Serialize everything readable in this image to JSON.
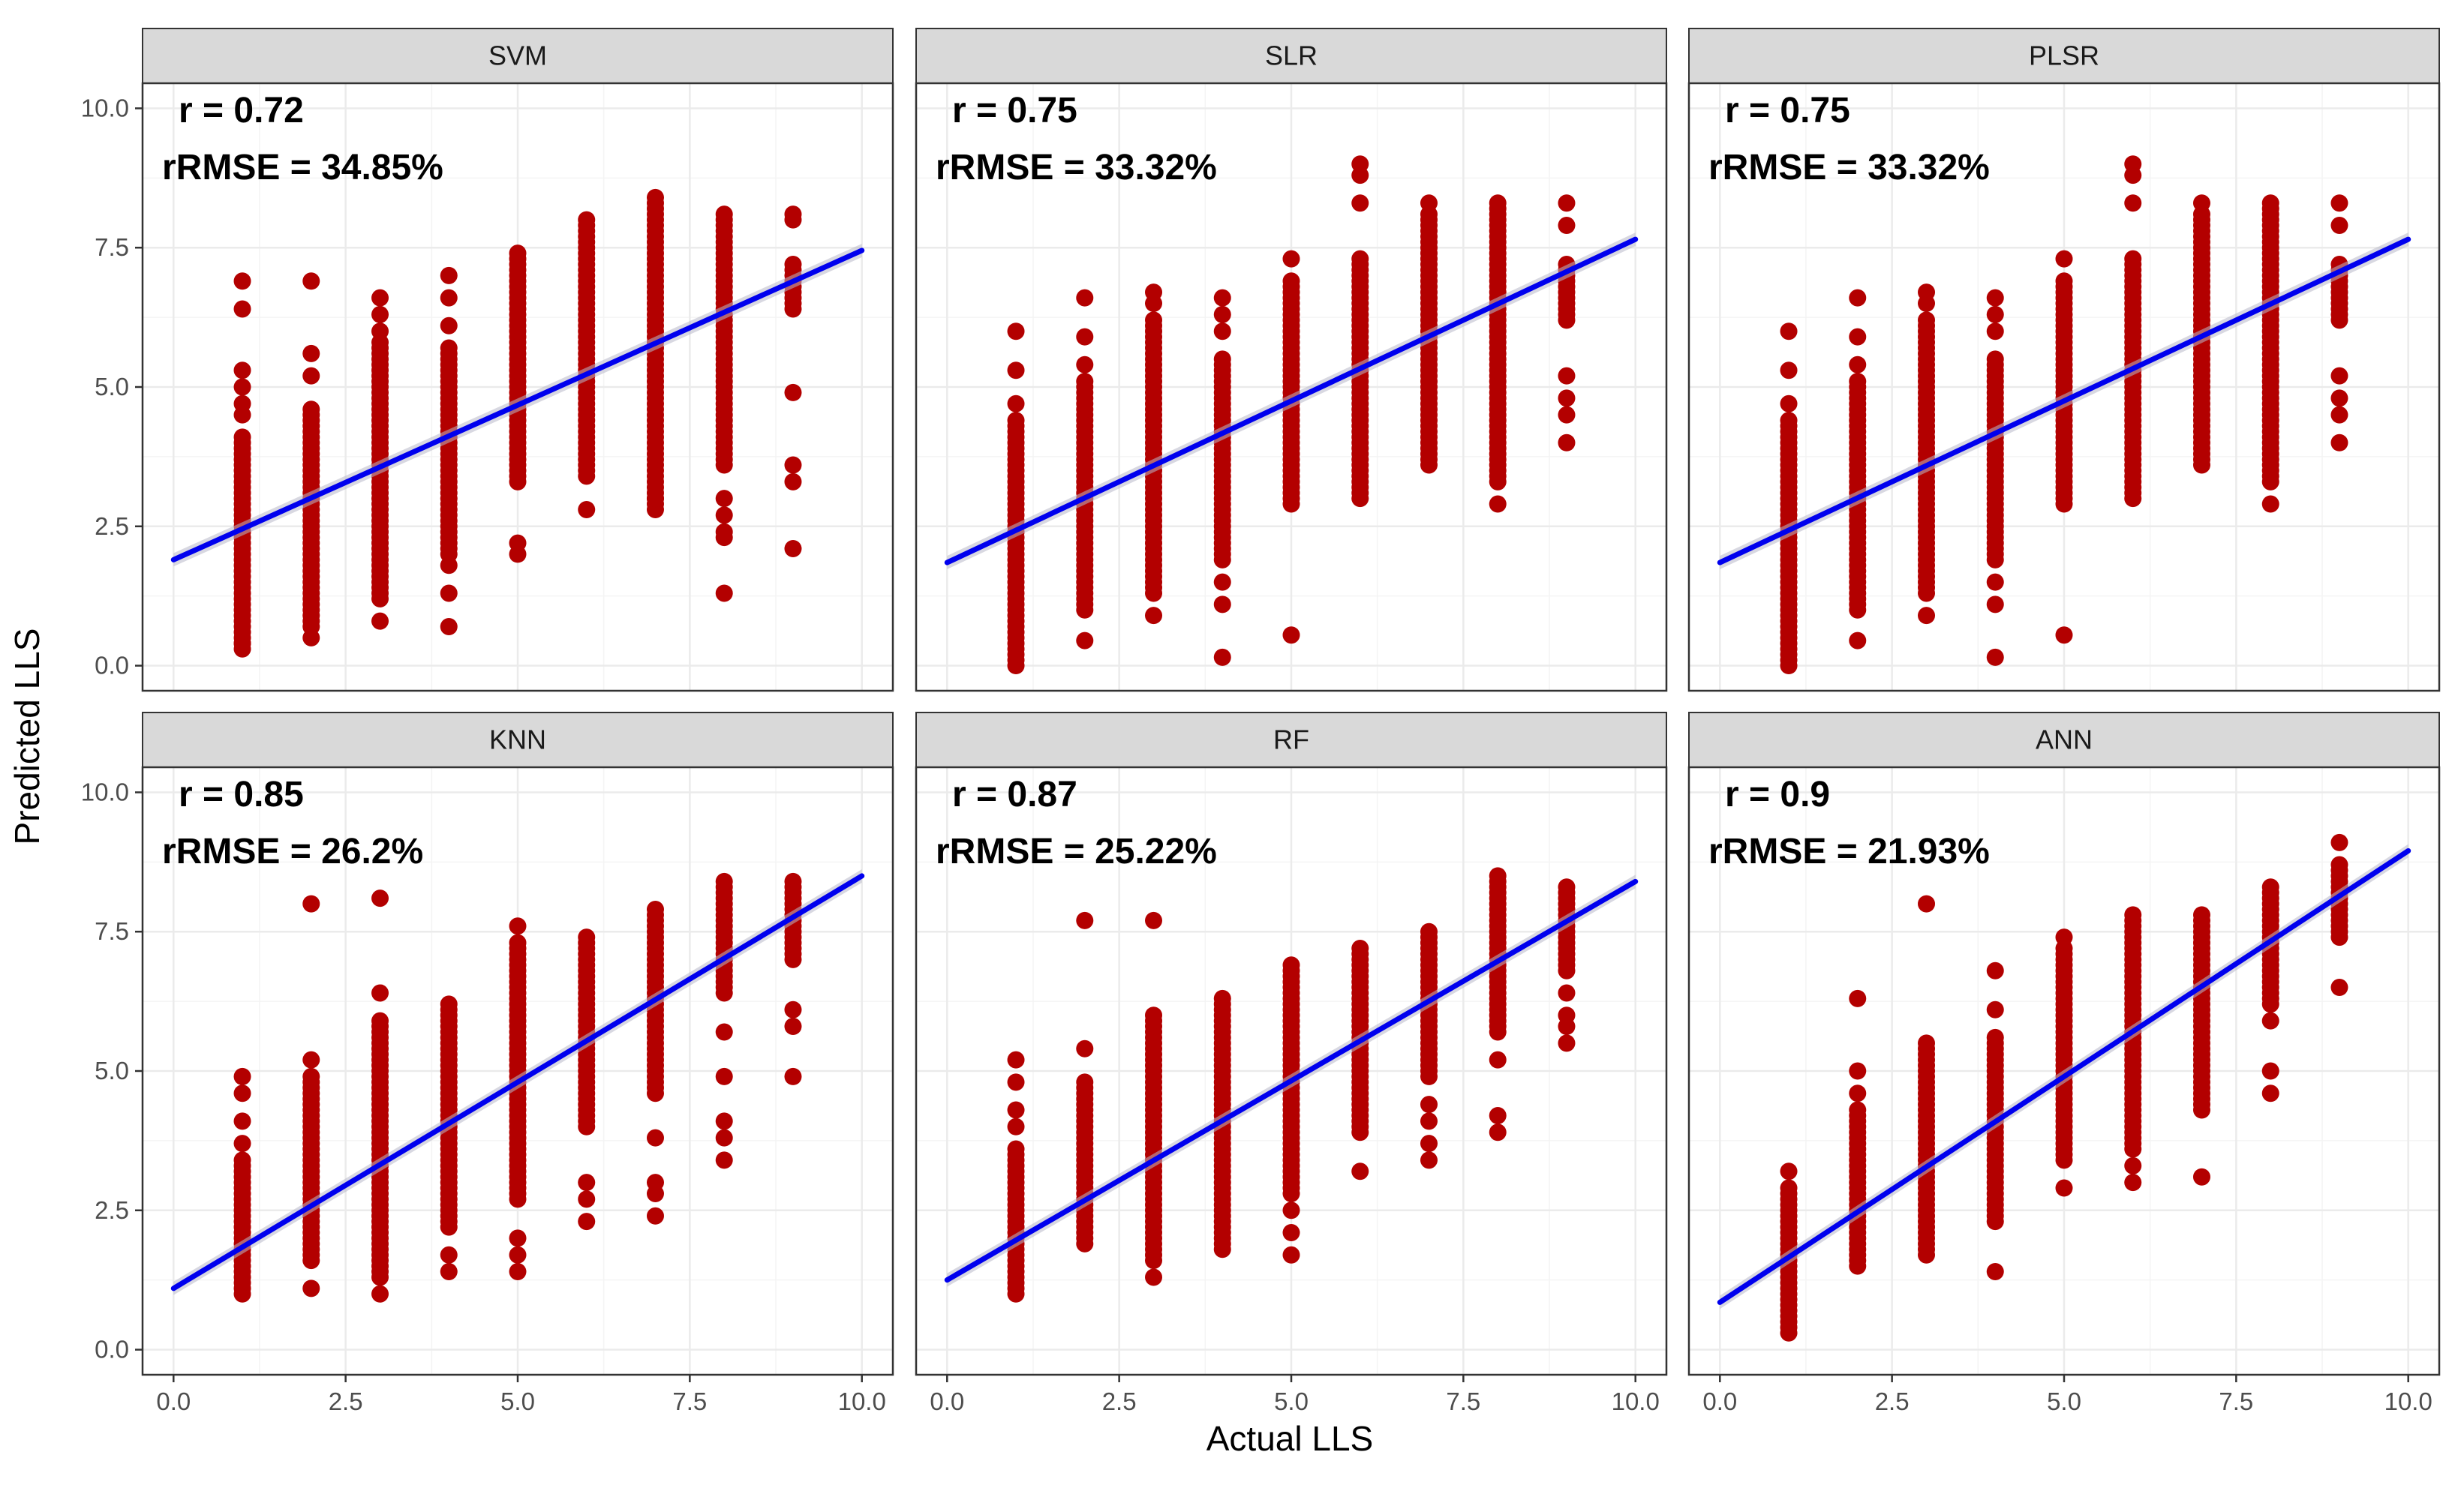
{
  "figure": {
    "xlabel": "Actual LLS",
    "ylabel": "Predicted LLS"
  },
  "colors": {
    "points": "#b30000",
    "fit_line": "#0000ee",
    "ci_band": "#b8b8c8",
    "strip": "#d9d9d9",
    "grid_major": "#ebebeb",
    "grid_minor": "#f4f4f4",
    "border": "#333333"
  },
  "chart_data": [
    {
      "type": "scatter",
      "title": "SVM",
      "annotation_r": "r = 0.72",
      "annotation_rmse": "rRMSE = 34.85%",
      "xlim": [
        0,
        10
      ],
      "ylim": [
        0,
        10
      ],
      "x_ticks": [
        "0.0",
        "2.5",
        "5.0",
        "7.5",
        "10.0"
      ],
      "y_ticks": [
        "0.0",
        "2.5",
        "5.0",
        "7.5",
        "10.0"
      ],
      "fit": {
        "intercept": 1.9,
        "slope": 0.555
      },
      "groups": [
        {
          "x": 1,
          "min": 0.3,
          "max": 4.1,
          "extra": [
            0.4,
            4.5,
            4.7,
            5.0,
            5.3,
            6.4,
            6.9
          ]
        },
        {
          "x": 2,
          "min": 0.7,
          "max": 4.6,
          "extra": [
            0.5,
            5.2,
            5.6,
            6.9
          ]
        },
        {
          "x": 3,
          "min": 1.2,
          "max": 5.8,
          "extra": [
            0.8,
            6.0,
            6.3,
            6.6
          ]
        },
        {
          "x": 4,
          "min": 2.0,
          "max": 5.7,
          "extra": [
            0.7,
            1.3,
            1.8,
            6.1,
            6.6,
            7.0
          ]
        },
        {
          "x": 5,
          "min": 3.3,
          "max": 7.4,
          "extra": [
            2.0,
            2.2
          ]
        },
        {
          "x": 6,
          "min": 3.4,
          "max": 8.0,
          "extra": [
            2.8
          ]
        },
        {
          "x": 7,
          "min": 2.8,
          "max": 8.4,
          "extra": [
            3.0
          ]
        },
        {
          "x": 8,
          "min": 3.6,
          "max": 8.1,
          "extra": [
            1.3,
            2.3,
            2.4,
            2.7,
            3.0
          ]
        },
        {
          "x": 9,
          "min": 6.4,
          "max": 7.2,
          "extra": [
            2.1,
            3.3,
            3.6,
            4.9,
            8.0,
            8.1
          ]
        }
      ]
    },
    {
      "type": "scatter",
      "title": "SLR",
      "annotation_r": "r = 0.75",
      "annotation_rmse": "rRMSE = 33.32%",
      "xlim": [
        0,
        10
      ],
      "ylim": [
        0,
        10
      ],
      "x_ticks": [
        "0.0",
        "2.5",
        "5.0",
        "7.5",
        "10.0"
      ],
      "y_ticks": [
        "0.0",
        "2.5",
        "5.0",
        "7.5",
        "10.0"
      ],
      "fit": {
        "intercept": 1.85,
        "slope": 0.58
      },
      "groups": [
        {
          "x": 1,
          "min": 0.0,
          "max": 4.4,
          "extra": [
            4.7,
            5.3,
            6.0
          ]
        },
        {
          "x": 2,
          "min": 1.0,
          "max": 5.1,
          "extra": [
            0.45,
            5.4,
            5.9,
            6.6
          ]
        },
        {
          "x": 3,
          "min": 1.3,
          "max": 6.2,
          "extra": [
            0.9,
            6.5,
            6.7
          ]
        },
        {
          "x": 4,
          "min": 1.9,
          "max": 5.5,
          "extra": [
            0.15,
            1.1,
            1.5,
            6.0,
            6.3,
            6.6
          ]
        },
        {
          "x": 5,
          "min": 2.9,
          "max": 6.9,
          "extra": [
            0.55,
            7.3
          ]
        },
        {
          "x": 6,
          "min": 3.0,
          "max": 7.3,
          "extra": [
            8.3,
            8.8,
            9.0
          ]
        },
        {
          "x": 7,
          "min": 3.6,
          "max": 8.1,
          "extra": [
            8.3
          ]
        },
        {
          "x": 8,
          "min": 3.3,
          "max": 8.3,
          "extra": [
            2.9
          ]
        },
        {
          "x": 9,
          "min": 6.2,
          "max": 7.2,
          "extra": [
            4.0,
            4.5,
            4.8,
            5.2,
            7.9,
            8.3
          ]
        }
      ]
    },
    {
      "type": "scatter",
      "title": "PLSR",
      "annotation_r": "r = 0.75",
      "annotation_rmse": "rRMSE = 33.32%",
      "xlim": [
        0,
        10
      ],
      "ylim": [
        0,
        10
      ],
      "x_ticks": [
        "0.0",
        "2.5",
        "5.0",
        "7.5",
        "10.0"
      ],
      "y_ticks": [
        "0.0",
        "2.5",
        "5.0",
        "7.5",
        "10.0"
      ],
      "fit": {
        "intercept": 1.85,
        "slope": 0.58
      },
      "groups": [
        {
          "x": 1,
          "min": 0.0,
          "max": 4.4,
          "extra": [
            4.7,
            5.3,
            6.0
          ]
        },
        {
          "x": 2,
          "min": 1.0,
          "max": 5.1,
          "extra": [
            0.45,
            5.4,
            5.9,
            6.6
          ]
        },
        {
          "x": 3,
          "min": 1.3,
          "max": 6.2,
          "extra": [
            0.9,
            6.5,
            6.7
          ]
        },
        {
          "x": 4,
          "min": 1.9,
          "max": 5.5,
          "extra": [
            0.15,
            1.1,
            1.5,
            6.0,
            6.3,
            6.6
          ]
        },
        {
          "x": 5,
          "min": 2.9,
          "max": 6.9,
          "extra": [
            0.55,
            7.3
          ]
        },
        {
          "x": 6,
          "min": 3.0,
          "max": 7.3,
          "extra": [
            8.3,
            8.8,
            9.0
          ]
        },
        {
          "x": 7,
          "min": 3.6,
          "max": 8.1,
          "extra": [
            8.3
          ]
        },
        {
          "x": 8,
          "min": 3.3,
          "max": 8.3,
          "extra": [
            2.9
          ]
        },
        {
          "x": 9,
          "min": 6.2,
          "max": 7.2,
          "extra": [
            4.0,
            4.5,
            4.8,
            5.2,
            7.9,
            8.3
          ]
        }
      ]
    },
    {
      "type": "scatter",
      "title": "KNN",
      "annotation_r": "r = 0.85",
      "annotation_rmse": "rRMSE = 26.2%",
      "xlim": [
        0,
        10
      ],
      "ylim": [
        0,
        10
      ],
      "x_ticks": [
        "0.0",
        "2.5",
        "5.0",
        "7.5",
        "10.0"
      ],
      "y_ticks": [
        "0.0",
        "2.5",
        "5.0",
        "7.5",
        "10.0"
      ],
      "fit": {
        "intercept": 1.1,
        "slope": 0.74
      },
      "groups": [
        {
          "x": 1,
          "min": 1.0,
          "max": 3.4,
          "extra": [
            3.7,
            4.1,
            4.6,
            4.9
          ]
        },
        {
          "x": 2,
          "min": 1.6,
          "max": 4.9,
          "extra": [
            1.1,
            5.2,
            8.0
          ]
        },
        {
          "x": 3,
          "min": 1.3,
          "max": 5.9,
          "extra": [
            1.0,
            6.4,
            8.1
          ]
        },
        {
          "x": 4,
          "min": 2.2,
          "max": 6.2,
          "extra": [
            1.4,
            1.7
          ]
        },
        {
          "x": 5,
          "min": 2.7,
          "max": 7.3,
          "extra": [
            1.4,
            1.7,
            2.0,
            7.6
          ]
        },
        {
          "x": 6,
          "min": 4.0,
          "max": 7.4,
          "extra": [
            2.3,
            2.7,
            3.0
          ]
        },
        {
          "x": 7,
          "min": 4.6,
          "max": 7.9,
          "extra": [
            2.4,
            2.8,
            3.0,
            3.8
          ]
        },
        {
          "x": 8,
          "min": 6.4,
          "max": 8.4,
          "extra": [
            3.4,
            3.8,
            4.1,
            4.9,
            5.7
          ]
        },
        {
          "x": 9,
          "min": 7.0,
          "max": 8.4,
          "extra": [
            4.9,
            5.8,
            6.1
          ]
        }
      ]
    },
    {
      "type": "scatter",
      "title": "RF",
      "annotation_r": "r = 0.87",
      "annotation_rmse": "rRMSE = 25.22%",
      "xlim": [
        0,
        10
      ],
      "ylim": [
        0,
        10
      ],
      "x_ticks": [
        "0.0",
        "2.5",
        "5.0",
        "7.5",
        "10.0"
      ],
      "y_ticks": [
        "0.0",
        "2.5",
        "5.0",
        "7.5",
        "10.0"
      ],
      "fit": {
        "intercept": 1.25,
        "slope": 0.715
      },
      "groups": [
        {
          "x": 1,
          "min": 1.0,
          "max": 3.6,
          "extra": [
            4.0,
            4.3,
            4.8,
            5.2
          ]
        },
        {
          "x": 2,
          "min": 1.9,
          "max": 4.8,
          "extra": [
            5.4,
            7.7
          ]
        },
        {
          "x": 3,
          "min": 1.6,
          "max": 6.0,
          "extra": [
            1.3,
            7.7
          ]
        },
        {
          "x": 4,
          "min": 1.8,
          "max": 6.3,
          "extra": []
        },
        {
          "x": 5,
          "min": 2.8,
          "max": 6.9,
          "extra": [
            1.7,
            2.1,
            2.5
          ]
        },
        {
          "x": 6,
          "min": 3.9,
          "max": 7.2,
          "extra": [
            3.2
          ]
        },
        {
          "x": 7,
          "min": 4.9,
          "max": 7.5,
          "extra": [
            3.4,
            3.7,
            4.1,
            4.4
          ]
        },
        {
          "x": 8,
          "min": 5.7,
          "max": 8.5,
          "extra": [
            3.9,
            4.2,
            5.2
          ]
        },
        {
          "x": 9,
          "min": 6.9,
          "max": 8.3,
          "extra": [
            5.5,
            5.8,
            6.0,
            6.4,
            6.8
          ]
        }
      ]
    },
    {
      "type": "scatter",
      "title": "ANN",
      "annotation_r": "r = 0.9",
      "annotation_rmse": "rRMSE = 21.93%",
      "xlim": [
        0,
        10
      ],
      "ylim": [
        0,
        10
      ],
      "x_ticks": [
        "0.0",
        "2.5",
        "5.0",
        "7.5",
        "10.0"
      ],
      "y_ticks": [
        "0.0",
        "2.5",
        "5.0",
        "7.5",
        "10.0"
      ],
      "fit": {
        "intercept": 0.85,
        "slope": 0.81
      },
      "groups": [
        {
          "x": 1,
          "min": 0.3,
          "max": 2.9,
          "extra": [
            3.2
          ]
        },
        {
          "x": 2,
          "min": 1.5,
          "max": 4.3,
          "extra": [
            4.6,
            5.0,
            6.3
          ]
        },
        {
          "x": 3,
          "min": 1.7,
          "max": 5.5,
          "extra": [
            8.0
          ]
        },
        {
          "x": 4,
          "min": 2.3,
          "max": 5.6,
          "extra": [
            1.4,
            6.1,
            6.8
          ]
        },
        {
          "x": 5,
          "min": 3.4,
          "max": 7.2,
          "extra": [
            2.9,
            7.4
          ]
        },
        {
          "x": 6,
          "min": 3.6,
          "max": 7.8,
          "extra": [
            3.0,
            3.3
          ]
        },
        {
          "x": 7,
          "min": 4.3,
          "max": 7.8,
          "extra": [
            3.1
          ]
        },
        {
          "x": 8,
          "min": 6.2,
          "max": 8.3,
          "extra": [
            4.6,
            5.0,
            5.9
          ]
        },
        {
          "x": 9,
          "min": 7.4,
          "max": 8.7,
          "extra": [
            6.5,
            9.1
          ]
        }
      ]
    }
  ]
}
